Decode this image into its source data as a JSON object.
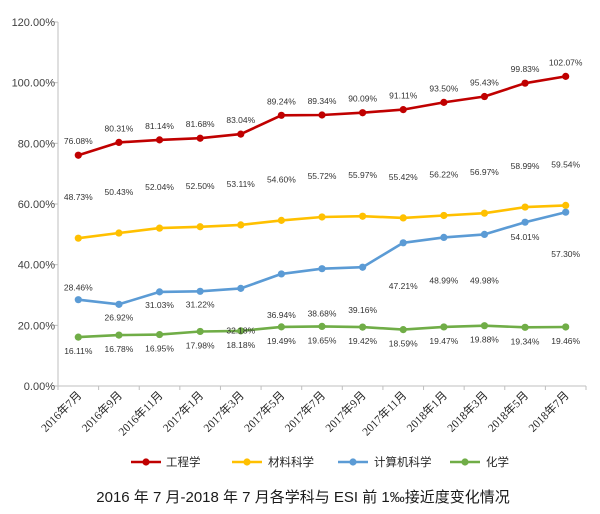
{
  "chart_data": {
    "type": "line",
    "title": "2016 年 7 月-2018 年 7 月各学科与 ESI 前 1‰接近度变化情况",
    "xlabel": "",
    "ylabel": "",
    "categories": [
      "2016年7月",
      "2016年9月",
      "2016年11月",
      "2017年1月",
      "2017年3月",
      "2017年5月",
      "2017年7月",
      "2017年9月",
      "2017年11月",
      "2018年1月",
      "2018年3月",
      "2018年5月",
      "2018年7月"
    ],
    "ylim": [
      0,
      120
    ],
    "yticks": [
      0,
      20,
      40,
      60,
      80,
      100,
      120
    ],
    "ytick_labels": [
      "0.00%",
      "20.00%",
      "40.00%",
      "60.00%",
      "80.00%",
      "100.00%",
      "120.00%"
    ],
    "grid": false,
    "legend_position": "bottom",
    "series": [
      {
        "name": "工程学",
        "color": "#C00000",
        "values": [
          76.08,
          80.31,
          81.14,
          81.68,
          83.04,
          89.24,
          89.34,
          90.09,
          91.11,
          93.5,
          95.43,
          99.83,
          102.07
        ]
      },
      {
        "name": "材料科学",
        "color": "#FFC000",
        "values": [
          48.73,
          50.43,
          52.04,
          52.5,
          53.11,
          54.6,
          55.72,
          55.97,
          55.42,
          56.22,
          56.97,
          58.99,
          59.54
        ]
      },
      {
        "name": "计算机科学",
        "color": "#5B9BD5",
        "values": [
          28.46,
          26.92,
          31.03,
          31.22,
          32.18,
          36.94,
          38.68,
          39.16,
          47.21,
          48.99,
          49.98,
          54.01,
          57.3
        ]
      },
      {
        "name": "化学",
        "color": "#70AD47",
        "values": [
          16.11,
          16.78,
          16.95,
          17.98,
          18.18,
          19.49,
          19.65,
          19.42,
          18.59,
          19.47,
          19.88,
          19.34,
          19.46
        ]
      }
    ]
  }
}
